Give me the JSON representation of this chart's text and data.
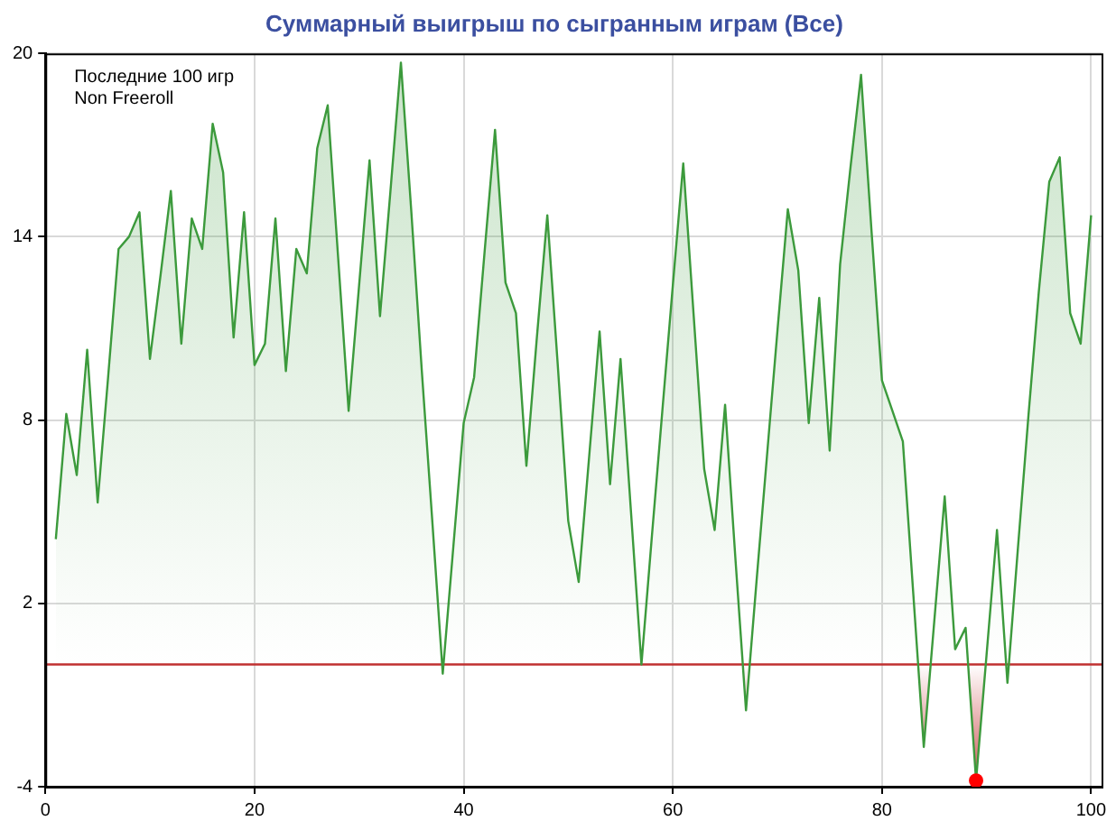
{
  "chart_data": {
    "type": "area",
    "title": "Суммарный выигрыш по сыгранным играм (Все)",
    "annotations": [
      "Последние 100 игр",
      "Non Freeroll"
    ],
    "x": [
      1,
      2,
      3,
      4,
      5,
      6,
      7,
      8,
      9,
      10,
      11,
      12,
      13,
      14,
      15,
      16,
      17,
      18,
      19,
      20,
      21,
      22,
      23,
      24,
      25,
      26,
      27,
      28,
      29,
      30,
      31,
      32,
      33,
      34,
      35,
      36,
      37,
      38,
      39,
      40,
      41,
      42,
      43,
      44,
      45,
      46,
      47,
      48,
      49,
      50,
      51,
      52,
      53,
      54,
      55,
      56,
      57,
      58,
      59,
      60,
      61,
      62,
      63,
      64,
      65,
      66,
      67,
      68,
      69,
      70,
      71,
      72,
      73,
      74,
      75,
      76,
      77,
      78,
      79,
      80,
      81,
      82,
      83,
      84,
      85,
      86,
      87,
      88,
      89,
      90,
      91,
      92,
      93,
      94,
      95,
      96,
      97,
      98,
      99,
      100
    ],
    "series": [
      {
        "color": "#3c9a3c",
        "marker": "none",
        "values": [
          4.1,
          8.2,
          6.2,
          10.3,
          5.3,
          9.4,
          13.6,
          14.0,
          14.8,
          10.0,
          12.7,
          15.5,
          10.5,
          14.6,
          13.6,
          17.7,
          16.1,
          10.7,
          14.8,
          9.8,
          10.5,
          14.6,
          9.6,
          13.6,
          12.8,
          16.9,
          18.3,
          13.3,
          8.3,
          12.4,
          16.5,
          11.4,
          15.5,
          19.7,
          14.8,
          9.6,
          4.7,
          -0.3,
          3.8,
          7.9,
          9.4,
          13.5,
          17.5,
          12.5,
          11.5,
          6.5,
          10.7,
          14.7,
          9.8,
          4.7,
          2.7,
          6.8,
          10.9,
          5.9,
          10.0,
          5.0,
          0.0,
          4.2,
          8.3,
          12.4,
          16.4,
          11.4,
          6.4,
          4.4,
          8.5,
          3.4,
          -1.5,
          2.7,
          6.8,
          10.9,
          14.9,
          12.9,
          7.9,
          12.0,
          7.0,
          13.1,
          16.3,
          19.3,
          14.2,
          9.3,
          8.3,
          7.3,
          2.3,
          -2.7,
          1.4,
          5.5,
          0.5,
          1.2,
          -3.8,
          0.3,
          4.4,
          -0.6,
          3.8,
          8.1,
          12.2,
          15.8,
          16.6,
          11.5,
          10.5,
          14.7
        ]
      },
      {
        "type": "scatter",
        "color": "#ff0000",
        "marker": "circle",
        "x": [
          89
        ],
        "values": [
          -3.8
        ]
      }
    ],
    "xlim": [
      0,
      101
    ],
    "xticks": [
      0,
      20,
      40,
      60,
      80,
      100
    ],
    "ylim": [
      -4,
      20
    ],
    "yticks": [
      -4,
      2,
      8,
      14,
      20
    ],
    "grid": true,
    "legend": false,
    "ref_lines": [
      {
        "axis": "y",
        "value": 0,
        "color": "#c03030"
      }
    ]
  }
}
